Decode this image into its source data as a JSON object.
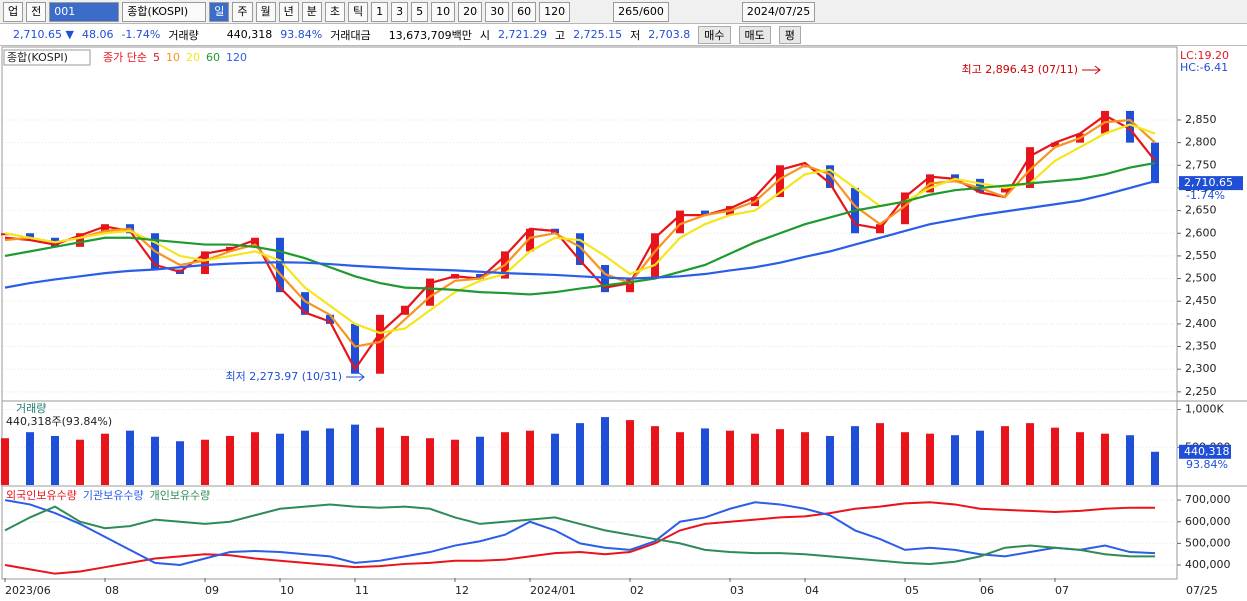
{
  "toolbar": {
    "items": [
      "업",
      "전",
      "001",
      "종합(KOSPI)",
      "일",
      "주",
      "월",
      "년",
      "분",
      "초",
      "틱",
      "1",
      "3",
      "5",
      "10",
      "20",
      "30",
      "60",
      "120",
      "265/600",
      "2024/07/25"
    ]
  },
  "quote": {
    "price": "2,710.65 ▼",
    "change": "48.06",
    "rate": "-1.74%",
    "volume_label": "거래량",
    "volume": "440,318",
    "volume_ratio": "93.84%",
    "amount_label": "거래대금",
    "amount": "13,673,709백만",
    "open_label": "시",
    "open": "2,721.29",
    "high_label": "고",
    "high": "2,725.15",
    "low_label": "저",
    "low": "2,703.8",
    "buy": "매수",
    "sell": "매도",
    "avg": "평"
  },
  "chart_data": [
    {
      "type": "line",
      "label": "종합(KOSPI)",
      "legend_title": "종가 단순",
      "up_color": "#e8141b",
      "down_color": "#1f4fd6",
      "close": [
        2600,
        2590,
        2570,
        2600,
        2620,
        2600,
        2520,
        2510,
        2560,
        2570,
        2590,
        2470,
        2420,
        2400,
        2290,
        2420,
        2440,
        2500,
        2510,
        2500,
        2560,
        2610,
        2600,
        2530,
        2470,
        2500,
        2600,
        2650,
        2640,
        2660,
        2680,
        2750,
        2750,
        2700,
        2600,
        2620,
        2690,
        2730,
        2720,
        2690,
        2700,
        2790,
        2800,
        2820,
        2870,
        2800,
        2710.65
      ],
      "series": [
        {
          "name": "5",
          "color": "#e8141b",
          "values": [
            2590,
            2585,
            2575,
            2595,
            2615,
            2605,
            2530,
            2515,
            2555,
            2565,
            2585,
            2480,
            2425,
            2405,
            2300,
            2380,
            2430,
            2490,
            2505,
            2500,
            2550,
            2610,
            2605,
            2540,
            2480,
            2490,
            2590,
            2640,
            2640,
            2655,
            2680,
            2740,
            2755,
            2710,
            2620,
            2610,
            2680,
            2725,
            2720,
            2690,
            2680,
            2770,
            2800,
            2820,
            2860,
            2830,
            2760
          ]
        },
        {
          "name": "10",
          "color": "#f7931e",
          "values": [
            2585,
            2590,
            2580,
            2590,
            2605,
            2610,
            2560,
            2530,
            2540,
            2560,
            2575,
            2510,
            2450,
            2420,
            2350,
            2360,
            2410,
            2460,
            2495,
            2500,
            2530,
            2590,
            2600,
            2570,
            2510,
            2490,
            2560,
            2620,
            2640,
            2650,
            2670,
            2720,
            2750,
            2730,
            2660,
            2620,
            2660,
            2710,
            2715,
            2700,
            2680,
            2740,
            2790,
            2810,
            2845,
            2850,
            2800
          ]
        },
        {
          "name": "20",
          "color": "#f5e61c",
          "values": [
            2600,
            2590,
            2580,
            2590,
            2600,
            2605,
            2580,
            2550,
            2540,
            2550,
            2560,
            2540,
            2480,
            2440,
            2400,
            2380,
            2390,
            2430,
            2470,
            2495,
            2510,
            2560,
            2590,
            2585,
            2550,
            2510,
            2530,
            2590,
            2620,
            2640,
            2650,
            2690,
            2730,
            2740,
            2700,
            2660,
            2670,
            2700,
            2720,
            2710,
            2700,
            2710,
            2760,
            2790,
            2820,
            2840,
            2820
          ]
        },
        {
          "name": "60",
          "color": "#1e9a2e",
          "values": [
            2550,
            2560,
            2570,
            2580,
            2590,
            2590,
            2585,
            2580,
            2575,
            2575,
            2570,
            2560,
            2545,
            2525,
            2505,
            2490,
            2480,
            2478,
            2475,
            2470,
            2468,
            2465,
            2470,
            2478,
            2485,
            2492,
            2500,
            2515,
            2530,
            2555,
            2580,
            2600,
            2620,
            2635,
            2650,
            2660,
            2670,
            2685,
            2695,
            2700,
            2705,
            2710,
            2715,
            2720,
            2730,
            2745,
            2755
          ]
        },
        {
          "name": "120",
          "color": "#2a5de8",
          "values": [
            2480,
            2490,
            2498,
            2505,
            2512,
            2517,
            2520,
            2525,
            2530,
            2533,
            2535,
            2536,
            2535,
            2532,
            2528,
            2525,
            2522,
            2520,
            2518,
            2515,
            2512,
            2510,
            2508,
            2505,
            2502,
            2500,
            2502,
            2505,
            2510,
            2518,
            2525,
            2535,
            2548,
            2560,
            2575,
            2590,
            2605,
            2620,
            2630,
            2640,
            2648,
            2656,
            2664,
            2672,
            2685,
            2700,
            2715
          ]
        }
      ],
      "ylim": [
        2232,
        3000
      ],
      "yticks": [
        {
          "value": 2250,
          "label": "2,250"
        },
        {
          "value": 2300,
          "label": "2,300"
        },
        {
          "value": 2350,
          "label": "2,350"
        },
        {
          "value": 2400,
          "label": "2,400"
        },
        {
          "value": 2450,
          "label": "2,450"
        },
        {
          "value": 2500,
          "label": "2,500"
        },
        {
          "value": 2550,
          "label": "2,550"
        },
        {
          "value": 2600,
          "label": "2,600"
        },
        {
          "value": 2650,
          "label": "2,650"
        },
        {
          "value": 2700,
          "label": "2,700"
        },
        {
          "value": 2750,
          "label": "2,750"
        },
        {
          "value": 2800,
          "label": "2,800"
        },
        {
          "value": 2850,
          "label": "2,850"
        }
      ],
      "annotations": [
        "최고 2,896.43 (07/11)",
        "최저 2,273.97 (10/31)"
      ],
      "lc_label": "LC:19.20",
      "hc_label": "HC:-6.41",
      "last_label": "2,710.65",
      "last_rate": "-1.74%"
    },
    {
      "type": "bar",
      "legend_title": "거래량",
      "subtitle": "440,318주(93.84%)",
      "values": [
        620000,
        700000,
        650000,
        600000,
        680000,
        720000,
        640000,
        580000,
        600000,
        650000,
        700000,
        680000,
        720000,
        750000,
        800000,
        760000,
        650000,
        620000,
        600000,
        640000,
        700000,
        720000,
        680000,
        820000,
        900000,
        860000,
        780000,
        700000,
        750000,
        720000,
        680000,
        740000,
        700000,
        650000,
        780000,
        820000,
        700000,
        680000,
        660000,
        720000,
        780000,
        820000,
        760000,
        700000,
        680000,
        660000,
        440318
      ],
      "ylim": [
        0,
        1100000
      ],
      "yticks": [
        {
          "value": 500000,
          "label": "500,000"
        },
        {
          "value": 1000000,
          "label": "1,000K"
        }
      ],
      "last_label": "440,318",
      "last_rate": "93.84%"
    },
    {
      "type": "line",
      "series": [
        {
          "name": "외국인보유수량",
          "color": "#e8141b",
          "values": [
            400000,
            380000,
            360000,
            370000,
            390000,
            410000,
            430000,
            440000,
            450000,
            445000,
            430000,
            420000,
            410000,
            400000,
            390000,
            395000,
            405000,
            410000,
            420000,
            420000,
            425000,
            440000,
            455000,
            460000,
            450000,
            460000,
            500000,
            560000,
            590000,
            600000,
            610000,
            620000,
            625000,
            640000,
            660000,
            670000,
            685000,
            690000,
            680000,
            660000,
            655000,
            650000,
            645000,
            650000,
            660000,
            665000,
            665000
          ]
        },
        {
          "name": "기관보유수량",
          "color": "#2a5de8",
          "values": [
            700000,
            680000,
            640000,
            590000,
            530000,
            470000,
            410000,
            400000,
            430000,
            460000,
            465000,
            460000,
            450000,
            440000,
            410000,
            420000,
            440000,
            460000,
            490000,
            510000,
            540000,
            600000,
            560000,
            500000,
            480000,
            470000,
            510000,
            600000,
            620000,
            660000,
            690000,
            680000,
            660000,
            630000,
            560000,
            520000,
            470000,
            480000,
            470000,
            450000,
            440000,
            460000,
            480000,
            470000,
            490000,
            460000,
            455000
          ]
        },
        {
          "name": "개인보유수량",
          "color": "#2e8b57",
          "values": [
            560000,
            620000,
            670000,
            600000,
            570000,
            580000,
            610000,
            600000,
            590000,
            600000,
            630000,
            660000,
            670000,
            680000,
            670000,
            665000,
            670000,
            660000,
            620000,
            590000,
            600000,
            610000,
            620000,
            590000,
            560000,
            540000,
            520000,
            500000,
            470000,
            460000,
            455000,
            455000,
            450000,
            440000,
            430000,
            420000,
            410000,
            405000,
            415000,
            440000,
            480000,
            490000,
            480000,
            470000,
            450000,
            440000,
            440000
          ]
        }
      ],
      "ylim": [
        340000,
        756000
      ],
      "yticks": [
        {
          "value": 400000,
          "label": "400,000"
        },
        {
          "value": 500000,
          "label": "500,000"
        },
        {
          "value": 600000,
          "label": "600,000"
        },
        {
          "value": 700000,
          "label": "700,000"
        }
      ],
      "categories": [
        "2023/06",
        null,
        null,
        null,
        "08",
        null,
        null,
        null,
        "09",
        null,
        null,
        "10",
        null,
        null,
        "11",
        null,
        null,
        null,
        "12",
        null,
        null,
        "2024/01",
        null,
        null,
        null,
        "02",
        null,
        null,
        null,
        "03",
        null,
        null,
        "04",
        null,
        null,
        null,
        "05",
        null,
        null,
        "06",
        null,
        null,
        "07",
        null,
        null,
        null,
        null
      ],
      "x_end_label": "07/25"
    }
  ]
}
